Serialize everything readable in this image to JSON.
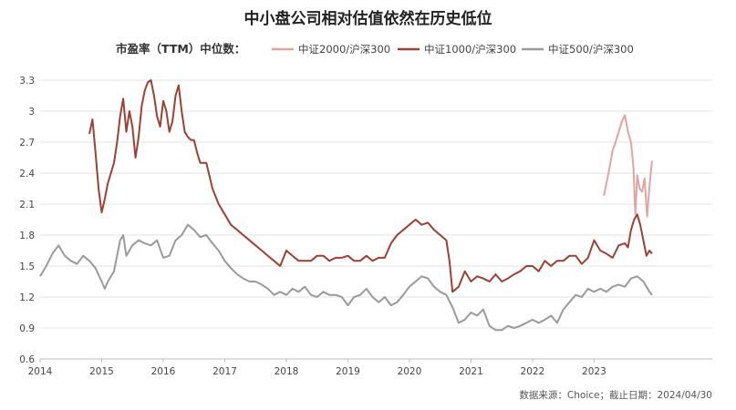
{
  "chart_data": {
    "type": "line",
    "title": "中小盘公司相对估值依然在历史低位",
    "legend_prefix": "市盈率（TTM）中位数：",
    "source": "数据来源：Choice；截止日期：2024/04/30",
    "x_ticks": [
      "2014",
      "2015",
      "2016",
      "2017",
      "2018",
      "2019",
      "2020",
      "2021",
      "2022",
      "2023"
    ],
    "y_ticks": [
      "3.3",
      "3",
      "2.7",
      "2.4",
      "2.1",
      "1.8",
      "1.5",
      "1.2",
      "0.9",
      "0.6"
    ],
    "ylim": [
      0.6,
      3.3
    ],
    "xlim": [
      2014.0,
      2024.92
    ],
    "grid": "horizontal",
    "legend_position": "top",
    "series": [
      {
        "name": "中证2000/沪深300",
        "color": "#dea5a4",
        "x": [
          2023.16,
          2023.2,
          2023.25,
          2023.3,
          2023.35,
          2023.4,
          2023.45,
          2023.5,
          2023.55,
          2023.6,
          2023.64,
          2023.67,
          2023.7,
          2023.74,
          2023.78,
          2023.82,
          2023.86,
          2023.9,
          2023.94
        ],
        "values": [
          2.18,
          2.3,
          2.45,
          2.62,
          2.7,
          2.8,
          2.9,
          2.96,
          2.8,
          2.7,
          2.45,
          2.0,
          2.38,
          2.25,
          2.22,
          2.35,
          1.98,
          2.28,
          2.52
        ]
      },
      {
        "name": "中证1000/沪深300",
        "color": "#9e4133",
        "x": [
          2014.8,
          2014.85,
          2014.9,
          2014.95,
          2015.0,
          2015.05,
          2015.1,
          2015.15,
          2015.2,
          2015.25,
          2015.3,
          2015.35,
          2015.4,
          2015.45,
          2015.5,
          2015.55,
          2015.6,
          2015.65,
          2015.7,
          2015.75,
          2015.8,
          2015.85,
          2015.9,
          2015.95,
          2016.0,
          2016.05,
          2016.1,
          2016.15,
          2016.2,
          2016.25,
          2016.3,
          2016.35,
          2016.4,
          2016.45,
          2016.5,
          2016.55,
          2016.6,
          2016.7,
          2016.8,
          2016.9,
          2017.0,
          2017.1,
          2017.2,
          2017.3,
          2017.4,
          2017.5,
          2017.6,
          2017.7,
          2017.8,
          2017.9,
          2018.0,
          2018.1,
          2018.2,
          2018.3,
          2018.4,
          2018.5,
          2018.6,
          2018.7,
          2018.8,
          2018.9,
          2019.0,
          2019.1,
          2019.2,
          2019.3,
          2019.4,
          2019.5,
          2019.6,
          2019.7,
          2019.8,
          2019.9,
          2020.0,
          2020.1,
          2020.2,
          2020.3,
          2020.4,
          2020.5,
          2020.6,
          2020.65,
          2020.7,
          2020.8,
          2020.9,
          2021.0,
          2021.1,
          2021.2,
          2021.3,
          2021.4,
          2021.5,
          2021.6,
          2021.7,
          2021.8,
          2021.9,
          2022.0,
          2022.1,
          2022.2,
          2022.3,
          2022.4,
          2022.5,
          2022.6,
          2022.7,
          2022.8,
          2022.9,
          2023.0,
          2023.1,
          2023.2,
          2023.3,
          2023.4,
          2023.5,
          2023.55,
          2023.6,
          2023.65,
          2023.7,
          2023.75,
          2023.8,
          2023.85,
          2023.9,
          2023.94
        ],
        "values": [
          2.78,
          2.92,
          2.6,
          2.25,
          2.02,
          2.15,
          2.3,
          2.4,
          2.5,
          2.7,
          2.95,
          3.12,
          2.8,
          3.0,
          2.85,
          2.55,
          2.75,
          3.05,
          3.2,
          3.28,
          3.3,
          3.15,
          2.95,
          2.85,
          3.1,
          3.0,
          2.8,
          2.9,
          3.15,
          3.25,
          3.0,
          2.8,
          2.75,
          2.72,
          2.72,
          2.6,
          2.5,
          2.5,
          2.25,
          2.1,
          2.0,
          1.9,
          1.85,
          1.8,
          1.75,
          1.7,
          1.65,
          1.6,
          1.55,
          1.5,
          1.65,
          1.6,
          1.55,
          1.55,
          1.55,
          1.6,
          1.6,
          1.55,
          1.58,
          1.58,
          1.6,
          1.55,
          1.55,
          1.6,
          1.55,
          1.58,
          1.58,
          1.72,
          1.8,
          1.85,
          1.9,
          1.95,
          1.9,
          1.92,
          1.85,
          1.8,
          1.75,
          1.55,
          1.25,
          1.3,
          1.45,
          1.35,
          1.4,
          1.38,
          1.35,
          1.42,
          1.35,
          1.38,
          1.42,
          1.45,
          1.5,
          1.5,
          1.45,
          1.55,
          1.5,
          1.55,
          1.55,
          1.6,
          1.6,
          1.52,
          1.58,
          1.75,
          1.65,
          1.62,
          1.58,
          1.7,
          1.72,
          1.68,
          1.85,
          1.95,
          2.0,
          1.9,
          1.75,
          1.6,
          1.65,
          1.62
        ]
      },
      {
        "name": "中证500/沪深300",
        "color": "#9a9a9a",
        "x": [
          2014.0,
          2014.1,
          2014.2,
          2014.3,
          2014.4,
          2014.5,
          2014.6,
          2014.7,
          2014.8,
          2014.9,
          2015.0,
          2015.05,
          2015.1,
          2015.2,
          2015.3,
          2015.35,
          2015.4,
          2015.5,
          2015.6,
          2015.7,
          2015.8,
          2015.9,
          2016.0,
          2016.1,
          2016.2,
          2016.3,
          2016.4,
          2016.5,
          2016.6,
          2016.7,
          2016.8,
          2016.9,
          2017.0,
          2017.1,
          2017.2,
          2017.3,
          2017.4,
          2017.5,
          2017.6,
          2017.7,
          2017.8,
          2017.9,
          2018.0,
          2018.1,
          2018.2,
          2018.3,
          2018.4,
          2018.5,
          2018.6,
          2018.7,
          2018.8,
          2018.9,
          2019.0,
          2019.1,
          2019.2,
          2019.3,
          2019.4,
          2019.5,
          2019.6,
          2019.7,
          2019.8,
          2019.9,
          2020.0,
          2020.1,
          2020.2,
          2020.3,
          2020.4,
          2020.5,
          2020.6,
          2020.7,
          2020.8,
          2020.9,
          2021.0,
          2021.1,
          2021.2,
          2021.3,
          2021.4,
          2021.5,
          2021.6,
          2021.7,
          2021.8,
          2021.9,
          2022.0,
          2022.1,
          2022.2,
          2022.3,
          2022.4,
          2022.5,
          2022.6,
          2022.7,
          2022.8,
          2022.9,
          2023.0,
          2023.1,
          2023.2,
          2023.3,
          2023.4,
          2023.5,
          2023.6,
          2023.7,
          2023.8,
          2023.9,
          2023.94
        ],
        "values": [
          1.4,
          1.5,
          1.62,
          1.7,
          1.6,
          1.55,
          1.52,
          1.6,
          1.55,
          1.48,
          1.35,
          1.28,
          1.35,
          1.45,
          1.75,
          1.8,
          1.6,
          1.7,
          1.75,
          1.72,
          1.7,
          1.75,
          1.58,
          1.6,
          1.75,
          1.8,
          1.9,
          1.85,
          1.78,
          1.8,
          1.72,
          1.65,
          1.55,
          1.48,
          1.42,
          1.38,
          1.35,
          1.35,
          1.32,
          1.28,
          1.22,
          1.25,
          1.22,
          1.28,
          1.25,
          1.3,
          1.22,
          1.2,
          1.25,
          1.22,
          1.22,
          1.2,
          1.12,
          1.2,
          1.22,
          1.28,
          1.2,
          1.15,
          1.2,
          1.12,
          1.15,
          1.22,
          1.3,
          1.35,
          1.4,
          1.38,
          1.3,
          1.25,
          1.22,
          1.1,
          0.95,
          0.98,
          1.05,
          1.02,
          1.08,
          0.92,
          0.88,
          0.88,
          0.92,
          0.9,
          0.92,
          0.95,
          0.98,
          0.95,
          0.98,
          1.02,
          0.95,
          1.08,
          1.15,
          1.22,
          1.2,
          1.28,
          1.25,
          1.28,
          1.25,
          1.3,
          1.32,
          1.3,
          1.38,
          1.4,
          1.35,
          1.25,
          1.22
        ]
      }
    ]
  }
}
